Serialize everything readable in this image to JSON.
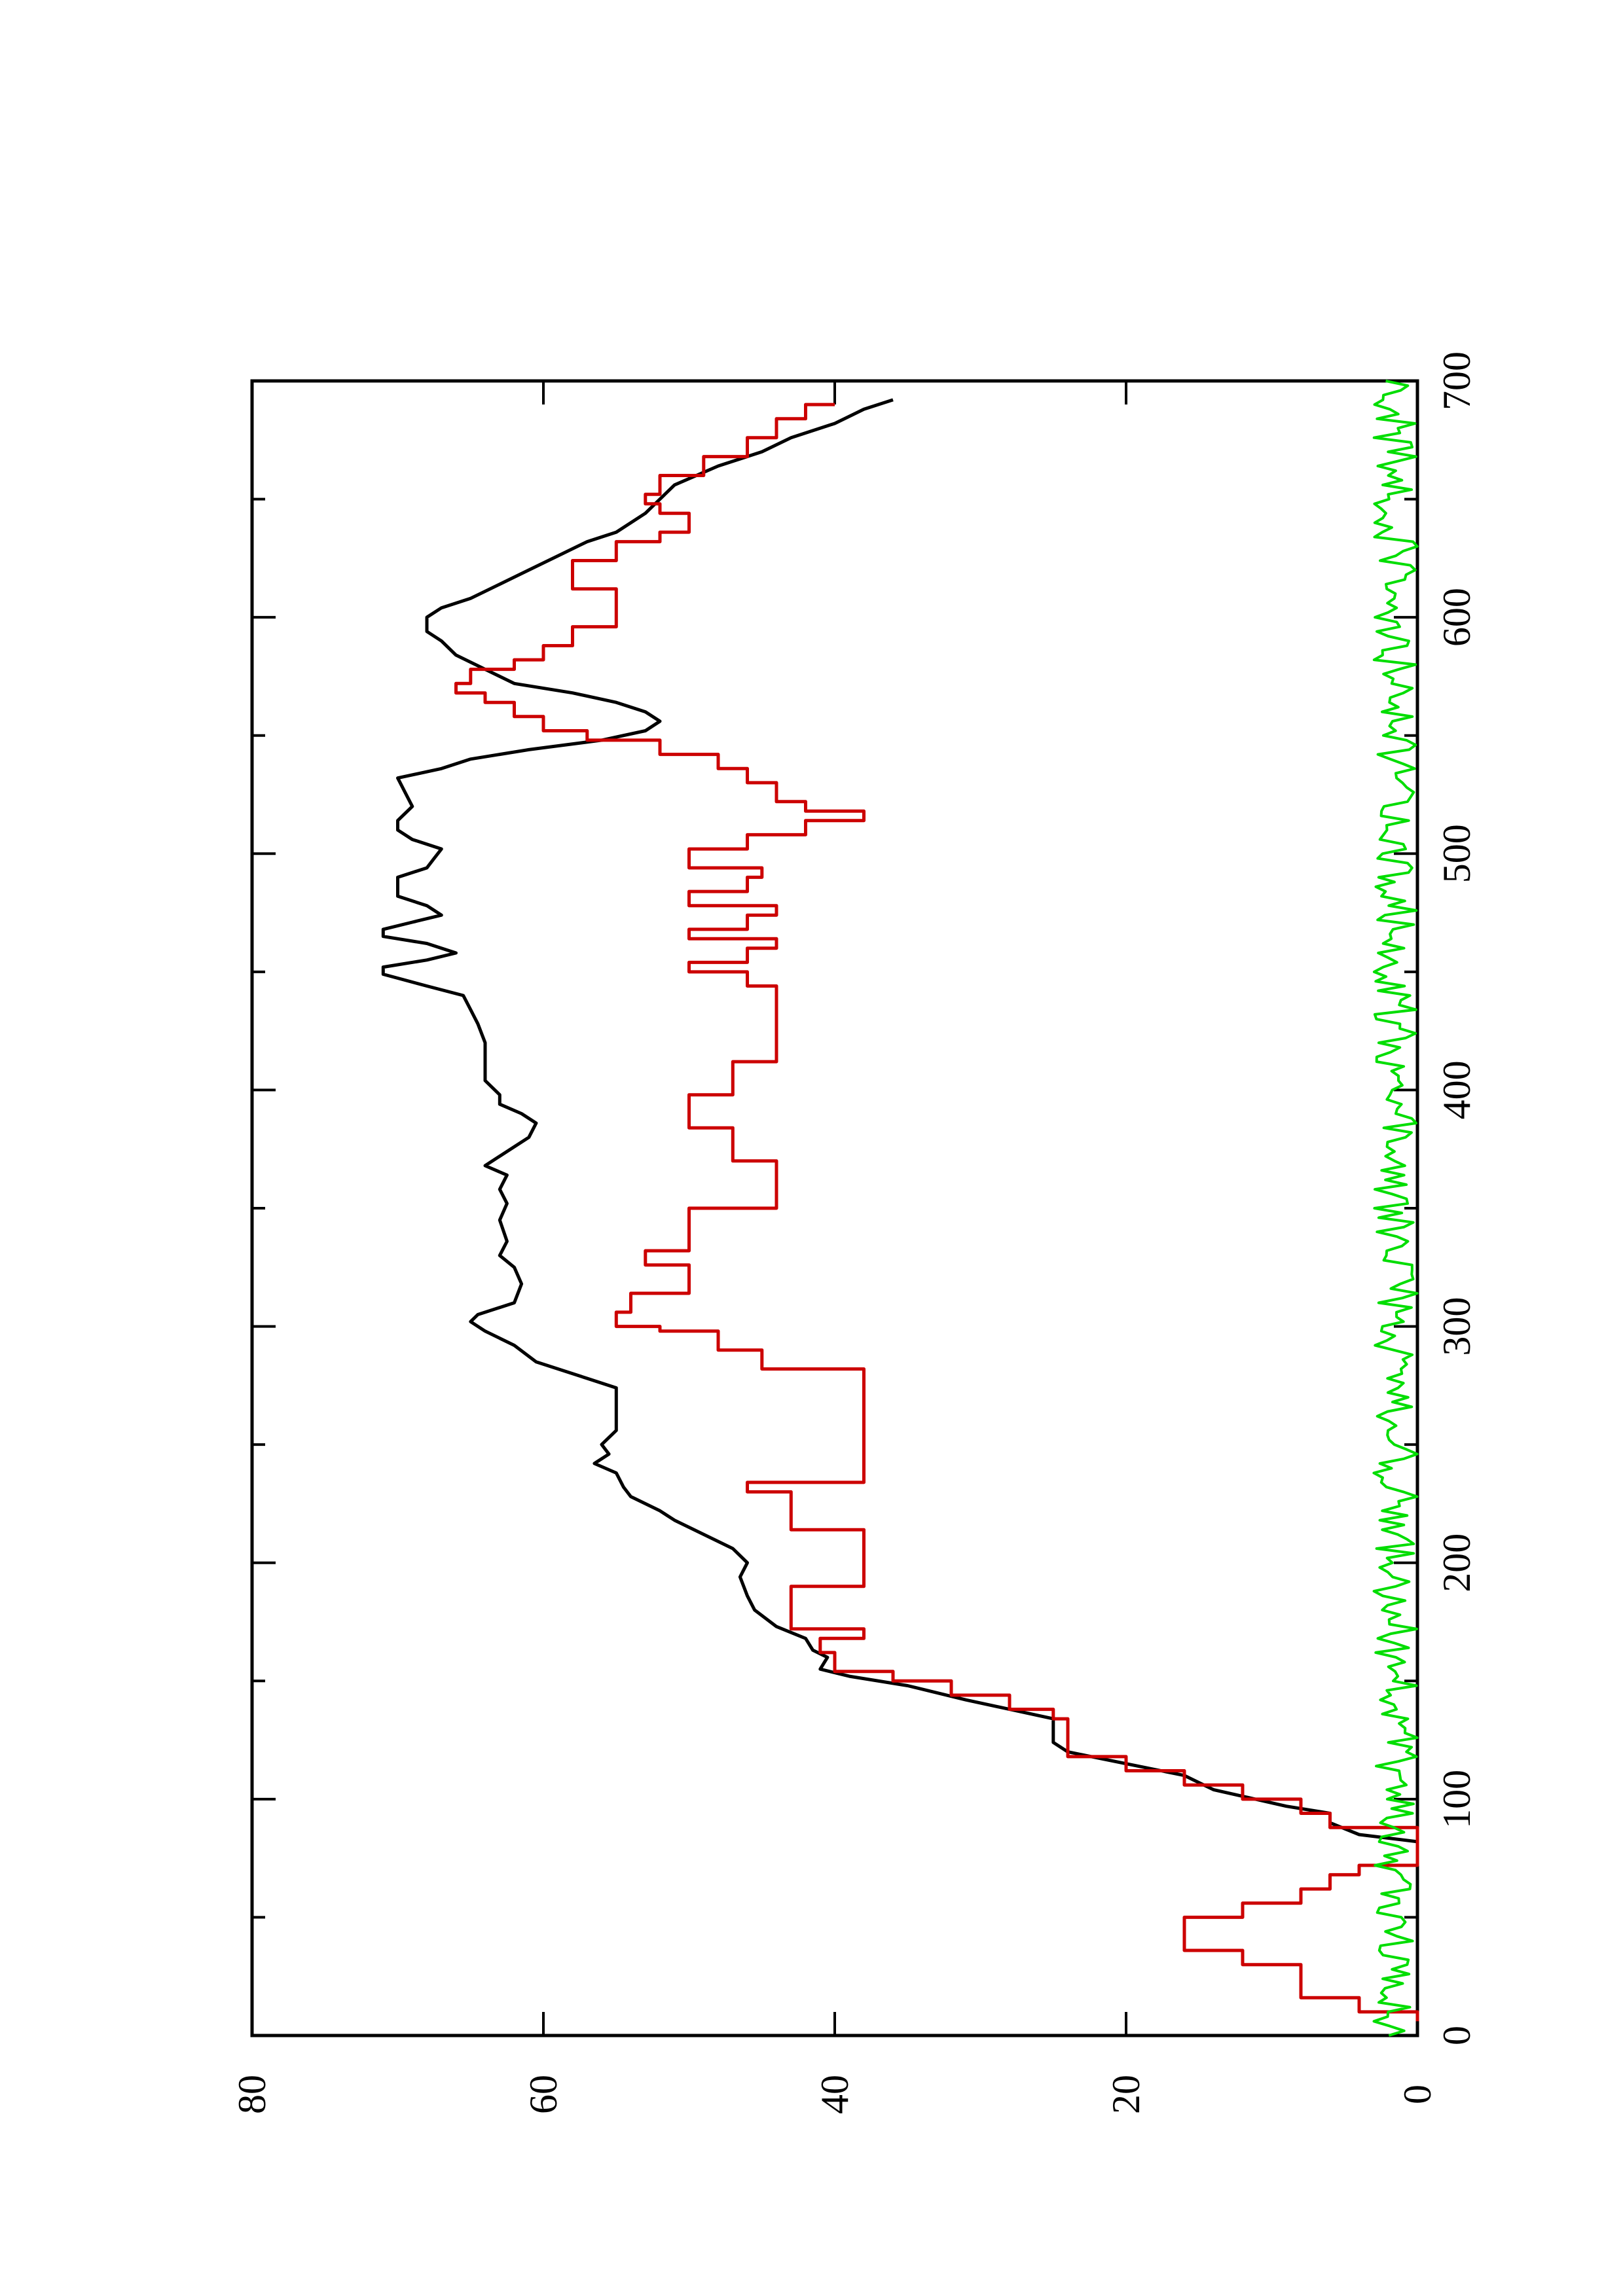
{
  "chart_data": {
    "type": "line",
    "orientation": "rotated-90-ccw",
    "title": "",
    "xlabel": "",
    "ylabel": "",
    "xlim": [
      0,
      700
    ],
    "ylim": [
      0,
      80
    ],
    "x_ticks": [
      0,
      100,
      200,
      300,
      400,
      500,
      600,
      700
    ],
    "x_tick_labels": [
      "0",
      "100",
      "200",
      "300",
      "400",
      "500",
      "600",
      "700"
    ],
    "x_minor_ticks": [
      50,
      150,
      250,
      350,
      450,
      550,
      650
    ],
    "y_ticks": [
      0,
      20,
      40,
      60,
      80
    ],
    "y_tick_labels": [
      "0",
      "20",
      "40",
      "60",
      "80"
    ],
    "grid": false,
    "legend": "none",
    "series": [
      {
        "color": "#000000",
        "style": "line",
        "points": [
          [
            82,
            0
          ],
          [
            85,
            4
          ],
          [
            90,
            6
          ],
          [
            94,
            6
          ],
          [
            97,
            9
          ],
          [
            104,
            14
          ],
          [
            107,
            15
          ],
          [
            110,
            16
          ],
          [
            115,
            20
          ],
          [
            120,
            24
          ],
          [
            124,
            25
          ],
          [
            134,
            25
          ],
          [
            138,
            28
          ],
          [
            142,
            31
          ],
          [
            148,
            35
          ],
          [
            152,
            39
          ],
          [
            155,
            41
          ],
          [
            160,
            40.5
          ],
          [
            163,
            41.5
          ],
          [
            168,
            42
          ],
          [
            173,
            44
          ],
          [
            180,
            45.5
          ],
          [
            186,
            46
          ],
          [
            194,
            46.5
          ],
          [
            200,
            46
          ],
          [
            206,
            47
          ],
          [
            212,
            49
          ],
          [
            218,
            51
          ],
          [
            222,
            52
          ],
          [
            228,
            54
          ],
          [
            232,
            54.5
          ],
          [
            238,
            55
          ],
          [
            242,
            56.5
          ],
          [
            246,
            55.5
          ],
          [
            250,
            56
          ],
          [
            256,
            55
          ],
          [
            265,
            55
          ],
          [
            274,
            55
          ],
          [
            278,
            57
          ],
          [
            285,
            60.5
          ],
          [
            292,
            62
          ],
          [
            298,
            64
          ],
          [
            302,
            65
          ],
          [
            305,
            64.5
          ],
          [
            310,
            62
          ],
          [
            318,
            61.5
          ],
          [
            325,
            62
          ],
          [
            330,
            63
          ],
          [
            336,
            62.5
          ],
          [
            345,
            63
          ],
          [
            352,
            62.5
          ],
          [
            358,
            63
          ],
          [
            364,
            62.5
          ],
          [
            368,
            64
          ],
          [
            372,
            63
          ],
          [
            376,
            62
          ],
          [
            380,
            61
          ],
          [
            386,
            60.5
          ],
          [
            390,
            61.5
          ],
          [
            394,
            63
          ],
          [
            398,
            63
          ],
          [
            404,
            64
          ],
          [
            410,
            64
          ],
          [
            420,
            64
          ],
          [
            428,
            64.5
          ],
          [
            434,
            65
          ],
          [
            440,
            65.5
          ],
          [
            444,
            68
          ],
          [
            449,
            71
          ],
          [
            452,
            71
          ],
          [
            455,
            68
          ],
          [
            458,
            66
          ],
          [
            462,
            68
          ],
          [
            465,
            71
          ],
          [
            468,
            71
          ],
          [
            471,
            69
          ],
          [
            474,
            67
          ],
          [
            478,
            68
          ],
          [
            482,
            70
          ],
          [
            486,
            70
          ],
          [
            490,
            70
          ],
          [
            494,
            68
          ],
          [
            498,
            67.5
          ],
          [
            502,
            67
          ],
          [
            506,
            69
          ],
          [
            510,
            70
          ],
          [
            514,
            70
          ],
          [
            520,
            69
          ],
          [
            526,
            69.5
          ],
          [
            532,
            70
          ],
          [
            536,
            67
          ],
          [
            540,
            65
          ],
          [
            544,
            61
          ],
          [
            548,
            56
          ],
          [
            552,
            53
          ],
          [
            556,
            52
          ],
          [
            560,
            53
          ],
          [
            564,
            55
          ],
          [
            568,
            58
          ],
          [
            572,
            62
          ],
          [
            578,
            64
          ],
          [
            584,
            66
          ],
          [
            590,
            67
          ],
          [
            594,
            68
          ],
          [
            600,
            68
          ],
          [
            604,
            67
          ],
          [
            608,
            65
          ],
          [
            614,
            63
          ],
          [
            620,
            61
          ],
          [
            626,
            59
          ],
          [
            632,
            57
          ],
          [
            636,
            55
          ],
          [
            644,
            53
          ],
          [
            650,
            52
          ],
          [
            656,
            51
          ],
          [
            664,
            48
          ],
          [
            670,
            45
          ],
          [
            676,
            43
          ],
          [
            682,
            40
          ],
          [
            688,
            38
          ],
          [
            692,
            36
          ]
        ]
      },
      {
        "color": "#cc0000",
        "style": "step",
        "points": [
          [
            6,
            0
          ],
          [
            10,
            4
          ],
          [
            16,
            8
          ],
          [
            26,
            8
          ],
          [
            30,
            12
          ],
          [
            36,
            16
          ],
          [
            44,
            16
          ],
          [
            50,
            12
          ],
          [
            56,
            8
          ],
          [
            62,
            6
          ],
          [
            68,
            4
          ],
          [
            72,
            0
          ],
          [
            82,
            0
          ],
          [
            88,
            6
          ],
          [
            94,
            8
          ],
          [
            100,
            12
          ],
          [
            106,
            16
          ],
          [
            112,
            20
          ],
          [
            118,
            24
          ],
          [
            134,
            25
          ],
          [
            138,
            28
          ],
          [
            144,
            32
          ],
          [
            150,
            36
          ],
          [
            154,
            40
          ],
          [
            162,
            41
          ],
          [
            168,
            38
          ],
          [
            172,
            43
          ],
          [
            186,
            43
          ],
          [
            190,
            38
          ],
          [
            210,
            38
          ],
          [
            214,
            43
          ],
          [
            226,
            43
          ],
          [
            230,
            46
          ],
          [
            234,
            38
          ],
          [
            278,
            38
          ],
          [
            282,
            45
          ],
          [
            290,
            48
          ],
          [
            298,
            52
          ],
          [
            300,
            55
          ],
          [
            306,
            54
          ],
          [
            314,
            50
          ],
          [
            322,
            50
          ],
          [
            326,
            53
          ],
          [
            332,
            50
          ],
          [
            346,
            50
          ],
          [
            350,
            44
          ],
          [
            366,
            44
          ],
          [
            370,
            47
          ],
          [
            380,
            47
          ],
          [
            384,
            50
          ],
          [
            394,
            50
          ],
          [
            398,
            47
          ],
          [
            408,
            47
          ],
          [
            412,
            44
          ],
          [
            440,
            44
          ],
          [
            444,
            46
          ],
          [
            450,
            50
          ],
          [
            454,
            46
          ],
          [
            460,
            44
          ],
          [
            464,
            50
          ],
          [
            468,
            46
          ],
          [
            474,
            44
          ],
          [
            478,
            50
          ],
          [
            484,
            46
          ],
          [
            490,
            45
          ],
          [
            494,
            50
          ],
          [
            502,
            46
          ],
          [
            508,
            42
          ],
          [
            514,
            38
          ],
          [
            518,
            42
          ],
          [
            522,
            44
          ],
          [
            530,
            46
          ],
          [
            536,
            48
          ],
          [
            542,
            52
          ],
          [
            548,
            57
          ],
          [
            552,
            60
          ],
          [
            558,
            62
          ],
          [
            564,
            64
          ],
          [
            568,
            66
          ],
          [
            572,
            65
          ],
          [
            578,
            62
          ],
          [
            582,
            60
          ],
          [
            588,
            58
          ],
          [
            596,
            55
          ],
          [
            604,
            55
          ],
          [
            612,
            58
          ],
          [
            618,
            58
          ],
          [
            624,
            55
          ],
          [
            632,
            52
          ],
          [
            636,
            50
          ],
          [
            644,
            52
          ],
          [
            648,
            53
          ],
          [
            652,
            52
          ],
          [
            660,
            49
          ],
          [
            668,
            46
          ],
          [
            676,
            44
          ],
          [
            684,
            42
          ],
          [
            690,
            40
          ]
        ]
      },
      {
        "color": "#00dd00",
        "style": "line",
        "amplitude_max": 3,
        "x_range": [
          0,
          700
        ],
        "description_values": "noisy baseline fluctuating between 0 and about 3 across the full x range"
      }
    ]
  }
}
